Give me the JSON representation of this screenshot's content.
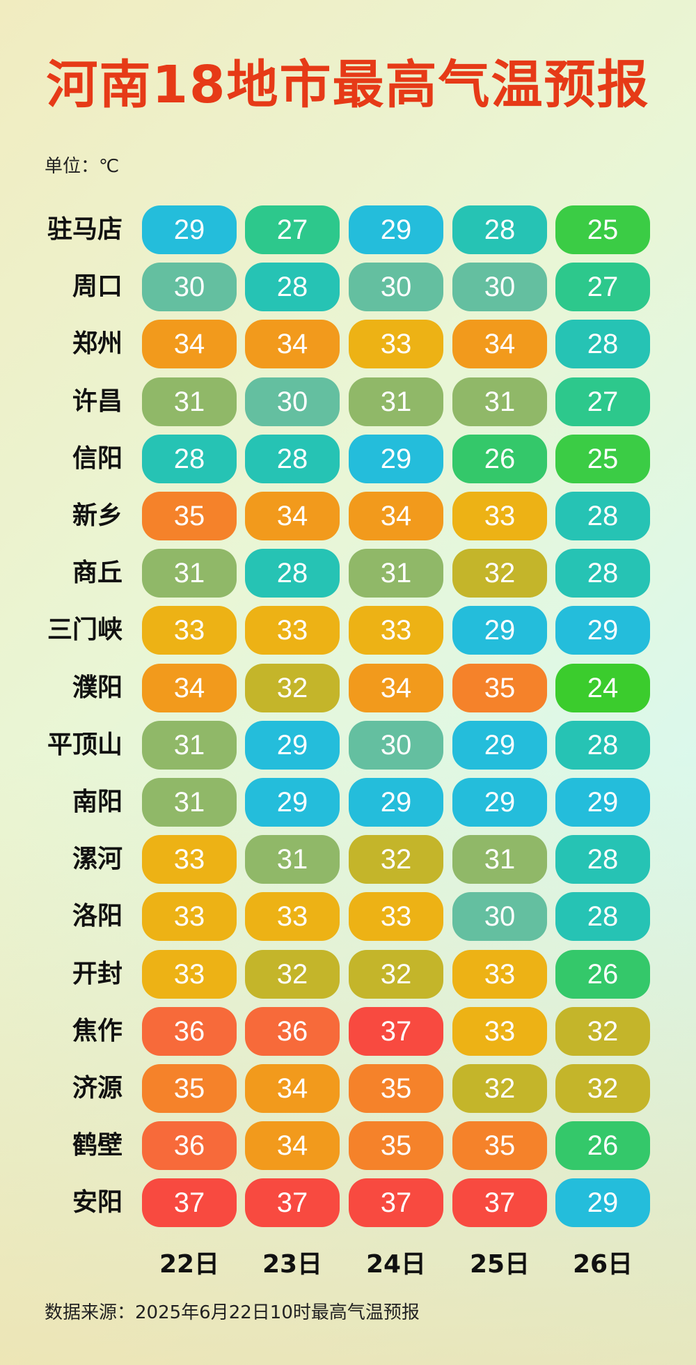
{
  "title": "河南18地市最高气温预报",
  "unit_label": "单位：℃",
  "source": "数据来源：2025年6月22日10时最高气温预报",
  "colors": {
    "24": "#3bcc2d",
    "25": "#3bcc45",
    "26": "#34c86a",
    "27": "#2dc88c",
    "28": "#26c3b4",
    "29": "#24bddb",
    "30": "#64bfa0",
    "31": "#90b868",
    "32": "#c4b52a",
    "33": "#edb215",
    "34": "#f29a1c",
    "35": "#f5822a",
    "36": "#f76a3a",
    "37": "#f84a40"
  },
  "chart_data": {
    "type": "table",
    "title": "河南18地市最高气温预报",
    "unit": "℃",
    "columns": [
      "22日",
      "23日",
      "24日",
      "25日",
      "26日"
    ],
    "rows": [
      {
        "city": "驻马店",
        "values": [
          29,
          27,
          29,
          28,
          25
        ]
      },
      {
        "city": "周口",
        "values": [
          30,
          28,
          30,
          30,
          27
        ]
      },
      {
        "city": "郑州",
        "values": [
          34,
          34,
          33,
          34,
          28
        ]
      },
      {
        "city": "许昌",
        "values": [
          31,
          30,
          31,
          31,
          27
        ]
      },
      {
        "city": "信阳",
        "values": [
          28,
          28,
          29,
          26,
          25
        ]
      },
      {
        "city": "新乡",
        "values": [
          35,
          34,
          34,
          33,
          28
        ]
      },
      {
        "city": "商丘",
        "values": [
          31,
          28,
          31,
          32,
          28
        ]
      },
      {
        "city": "三门峡",
        "values": [
          33,
          33,
          33,
          29,
          29
        ]
      },
      {
        "city": "濮阳",
        "values": [
          34,
          32,
          34,
          35,
          24
        ]
      },
      {
        "city": "平顶山",
        "values": [
          31,
          29,
          30,
          29,
          28
        ]
      },
      {
        "city": "南阳",
        "values": [
          31,
          29,
          29,
          29,
          29
        ]
      },
      {
        "city": "漯河",
        "values": [
          33,
          31,
          32,
          31,
          28
        ]
      },
      {
        "city": "洛阳",
        "values": [
          33,
          33,
          33,
          30,
          28
        ]
      },
      {
        "city": "开封",
        "values": [
          33,
          32,
          32,
          33,
          26
        ]
      },
      {
        "city": "焦作",
        "values": [
          36,
          36,
          37,
          33,
          32
        ]
      },
      {
        "city": "济源",
        "values": [
          35,
          34,
          35,
          32,
          32
        ]
      },
      {
        "city": "鹤壁",
        "values": [
          36,
          34,
          35,
          35,
          26
        ]
      },
      {
        "city": "安阳",
        "values": [
          37,
          37,
          37,
          37,
          29
        ]
      }
    ]
  }
}
